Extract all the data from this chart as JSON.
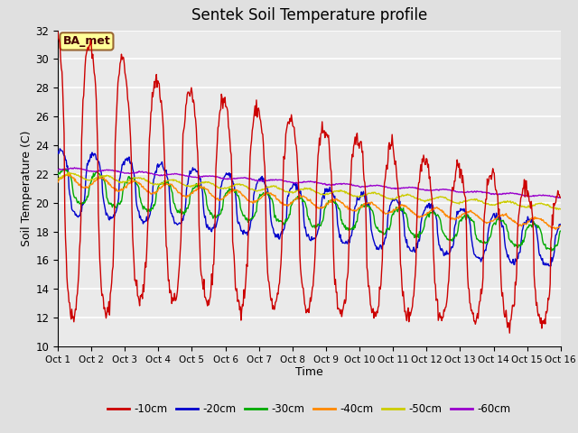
{
  "title": "Sentek Soil Temperature profile",
  "xlabel": "Time",
  "ylabel": "Soil Temperature (C)",
  "ylim": [
    10,
    32
  ],
  "yticks": [
    10,
    12,
    14,
    16,
    18,
    20,
    22,
    24,
    26,
    28,
    30,
    32
  ],
  "x_labels": [
    "Oct 1",
    "Oct 2",
    "Oct 3",
    "Oct 4",
    "Oct 5",
    "Oct 6",
    "Oct 7",
    "Oct 8",
    "Oct 9",
    "Oct 10",
    "Oct 11",
    "Oct 12",
    "Oct 13",
    "Oct 14",
    "Oct 15",
    "Oct 16"
  ],
  "annotation": "BA_met",
  "annotation_bg": "#ffff99",
  "annotation_border": "#996633",
  "fig_bg": "#e0e0e0",
  "plot_bg": "#eaeaea",
  "grid_color": "#ffffff",
  "colors": {
    "-10cm": "#cc0000",
    "-20cm": "#0000cc",
    "-30cm": "#00aa00",
    "-40cm": "#ff8800",
    "-50cm": "#cccc00",
    "-60cm": "#9900cc"
  },
  "linewidth": 1.0
}
